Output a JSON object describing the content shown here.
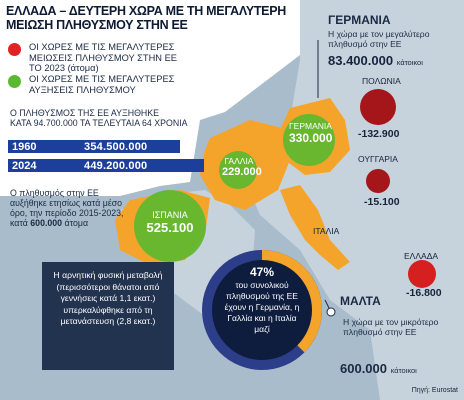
{
  "title": {
    "line1": "ΕΛΛΑΔΑ – ΔΕΥΤΕΡΗ ΧΩΡΑ ΜΕ ΤΗ ΜΕΓΑΛΥΤΕΡΗ",
    "line2": "ΜΕΙΩΣΗ ΠΛΗΘΥΣΜΟΥ ΣΤΗΝ ΕΕ"
  },
  "legend": {
    "red": "ΟΙ ΧΩΡΕΣ ΜΕ ΤΙΣ ΜΕΓΑΛΥΤΕΡΕΣ ΜΕΙΩΣΕΙΣ ΠΛΗΘΥΣΜΟΥ ΣΤΗΝ ΕΕ ΤΟ 2023 (άτομα)",
    "green": "ΟΙ ΧΩΡΕΣ ΜΕ ΤΙΣ ΜΕΓΑΛΥΤΕΡΕΣ ΑΥΞΗΣΕΙΣ ΠΛΗΘΥΣΜΟΥ"
  },
  "eu_growth": {
    "line1": "Ο ΠΛΗΘΥΣΜΟΣ ΤΗΣ ΕΕ ΑΥΞΗΘΗΚΕ",
    "line2": "ΚΑΤΑ 94.700.000 ΤΑ ΤΕΛΕΥΤΑΙΑ 64 ΧΡΟΝΙΑ",
    "rows": [
      {
        "year": "1960",
        "value": "354.500.000"
      },
      {
        "year": "2024",
        "value": "449.200.000"
      }
    ]
  },
  "eu_average": {
    "text": "Ο πληθυσμός στην ΕΕ αυξήθηκε ετησίως κατά μέσο όρο, την περίοδο 2015-2023, κατά",
    "value": "600.000",
    "unit": "άτομα"
  },
  "info_box": {
    "text": "Η αρνητική φυσική μεταβολή (περισσότεροι θάνατοι από γεννήσεις κατά 1,1 εκατ.) υπερκαλύφθηκε από τη μετανάστευση (2,8 εκατ.)"
  },
  "germany": {
    "title": "ΓΕΡΜΑΝΙΑ",
    "description": "Η χώρα με τον μεγαλύτερο πληθυσμό στην ΕΕ",
    "population": "83.400.000",
    "unit": "κάτοικοι"
  },
  "malta": {
    "title": "ΜΑΛΤΑ",
    "description": "Η χώρα με τον μικρότερο πληθυσμό στην ΕΕ",
    "population": "600.000",
    "unit": "κάτοικοι"
  },
  "countries": {
    "germany": {
      "name": "ΓΕΡΜΑΝΙΑ",
      "value": "330.000"
    },
    "france": {
      "name": "ΓΑΛΛΙΑ",
      "value": "229.000"
    },
    "spain": {
      "name": "ΙΣΠΑΝΙΑ",
      "value": "525.100"
    },
    "italy": {
      "name": "ΙΤΑΛΙΑ"
    },
    "poland": {
      "name": "ΠΟΛΩΝΙΑ",
      "value": "-132.900"
    },
    "romania": {
      "name": "ΟΥΓΓΑΡΙΑ",
      "value": "-15.100"
    },
    "greece": {
      "name": "ΕΛΛΑΔΑ",
      "value": "-16.800"
    }
  },
  "donut": {
    "percent": "47%",
    "text": "του συνολικού πληθυσμού της ΕΕ έχουν η Γερμανία, η Γαλλία και η Ιταλία μαζί"
  },
  "source": "Πηγή: Eurostat",
  "colors": {
    "green": "#5bb830",
    "red": "#a5161a",
    "orange": "#f4a42a",
    "navy": "#1c3f9c"
  }
}
